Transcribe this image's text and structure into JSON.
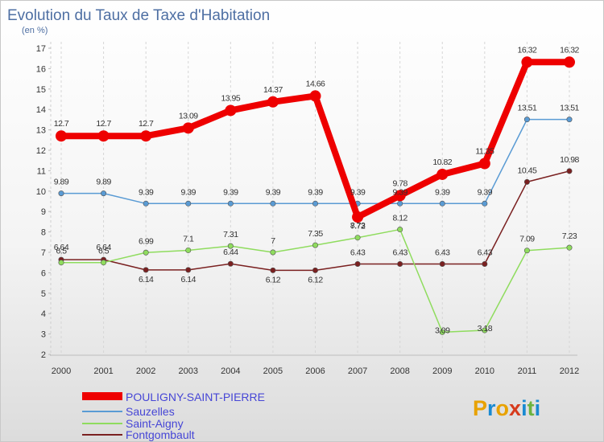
{
  "chart_data": {
    "type": "line",
    "title": "Evolution du Taux de Taxe d'Habitation",
    "subtitle": "(en %)",
    "xlabel": "",
    "ylabel": "",
    "x": [
      "2000",
      "2001",
      "2002",
      "2003",
      "2004",
      "2005",
      "2006",
      "2007",
      "2008",
      "2009",
      "2010",
      "2011",
      "2012"
    ],
    "ylim": [
      2,
      17
    ],
    "yticks": [
      2,
      3,
      4,
      5,
      6,
      7,
      8,
      9,
      10,
      11,
      12,
      13,
      14,
      15,
      16,
      17
    ],
    "ytick_labels": [
      "2",
      "3",
      "4",
      "5",
      "6",
      "7",
      "8",
      "9",
      "10",
      "11",
      "12",
      "13",
      "14",
      "15",
      "16",
      "17"
    ],
    "grid": "vertical dashed",
    "legend_position": "bottom-left",
    "series": [
      {
        "name": "POULIGNY-SAINT-PIERRE",
        "color": "#ee0000",
        "values": [
          12.7,
          12.7,
          12.7,
          13.09,
          13.95,
          14.37,
          14.66,
          8.73,
          9.78,
          10.82,
          11.35,
          16.32,
          16.32
        ],
        "labels": [
          "12.7",
          "12.7",
          "12.7",
          "13.09",
          "13.95",
          "14.37",
          "14.66",
          "8.73",
          "9.78",
          "10.82",
          "11.35",
          "16.32",
          "16.32"
        ]
      },
      {
        "name": "Sauzelles",
        "color": "#5a9bd4",
        "values": [
          9.89,
          9.89,
          9.39,
          9.39,
          9.39,
          9.39,
          9.39,
          9.39,
          9.39,
          9.39,
          9.39,
          13.51,
          13.51
        ],
        "labels": [
          "9.89",
          "9.89",
          "9.39",
          "9.39",
          "9.39",
          "9.39",
          "9.39",
          "9.39",
          "9.39",
          "9.39",
          "9.39",
          "13.51",
          "13.51"
        ]
      },
      {
        "name": "Saint-Aigny",
        "color": "#8fdc5e",
        "values": [
          6.5,
          6.5,
          6.99,
          7.1,
          7.31,
          7.0,
          7.35,
          7.72,
          8.12,
          3.09,
          3.18,
          7.09,
          7.23
        ],
        "labels": [
          "6.5",
          "6.5",
          "6.99",
          "7.1",
          "7.31",
          "7",
          "7.35",
          "7.72",
          "8.12",
          "3.09",
          "3.18",
          "7.09",
          "7.23"
        ]
      },
      {
        "name": "Fontgombault",
        "color": "#7a2020",
        "values": [
          6.64,
          6.64,
          6.14,
          6.14,
          6.44,
          6.12,
          6.12,
          6.43,
          6.43,
          6.43,
          6.43,
          10.45,
          10.98
        ],
        "labels": [
          "6.64",
          "6.64",
          "6.14",
          "6.14",
          "6.44",
          "6.12",
          "6.12",
          "6.43",
          "6.43",
          "6.43",
          "6.43",
          "10.45",
          "10.98"
        ]
      }
    ]
  },
  "logo": {
    "text": "Proxiti",
    "letters": [
      "P",
      "r",
      "o",
      "x",
      "i",
      "t",
      "i"
    ],
    "colors": [
      "#e8a200",
      "#1a8ad1",
      "#e8a200",
      "#d63b1d",
      "#1a8ad1",
      "#6cb33f",
      "#1a8ad1"
    ]
  }
}
